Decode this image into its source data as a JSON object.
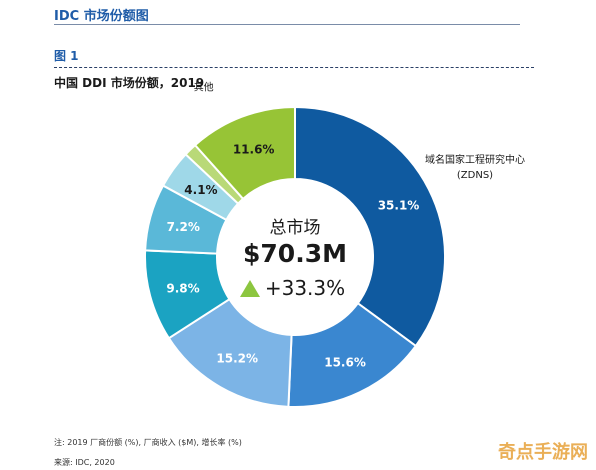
{
  "header": {
    "title": "IDC 市场份额图"
  },
  "figure": {
    "label": "图 1"
  },
  "chart_data": {
    "type": "pie",
    "donut": true,
    "title": "中国 DDI 市场份额，2019",
    "center": {
      "label": "总市场",
      "total": "$70.3M",
      "growth": "+33.3%"
    },
    "slices": [
      {
        "value": 35.1,
        "label": "35.1%",
        "name": "域名国家工程研究中心\n(ZDNS)",
        "color": "#0f5aa0"
      },
      {
        "value": 15.6,
        "label": "15.6%",
        "name": "",
        "color": "#3a87d0"
      },
      {
        "value": 15.2,
        "label": "15.2%",
        "name": "",
        "color": "#7cb4e6"
      },
      {
        "value": 9.8,
        "label": "9.8%",
        "name": "",
        "color": "#1ba3c2"
      },
      {
        "value": 7.2,
        "label": "7.2%",
        "name": "",
        "color": "#5ab8d8"
      },
      {
        "value": 4.1,
        "label": "4.1%",
        "name": "",
        "color": "#9fd8e8"
      },
      {
        "value": 1.4,
        "label": "",
        "name": "",
        "color": "#b9d978"
      },
      {
        "value": 11.6,
        "label": "11.6%",
        "name": "其他",
        "color": "#97c436"
      }
    ]
  },
  "notes": {
    "line1": "注: 2019 厂商份额 (%), 厂商收入 ($M), 增长率 (%)",
    "line2": "来源: IDC, 2020"
  },
  "watermark": "奇点手游网"
}
